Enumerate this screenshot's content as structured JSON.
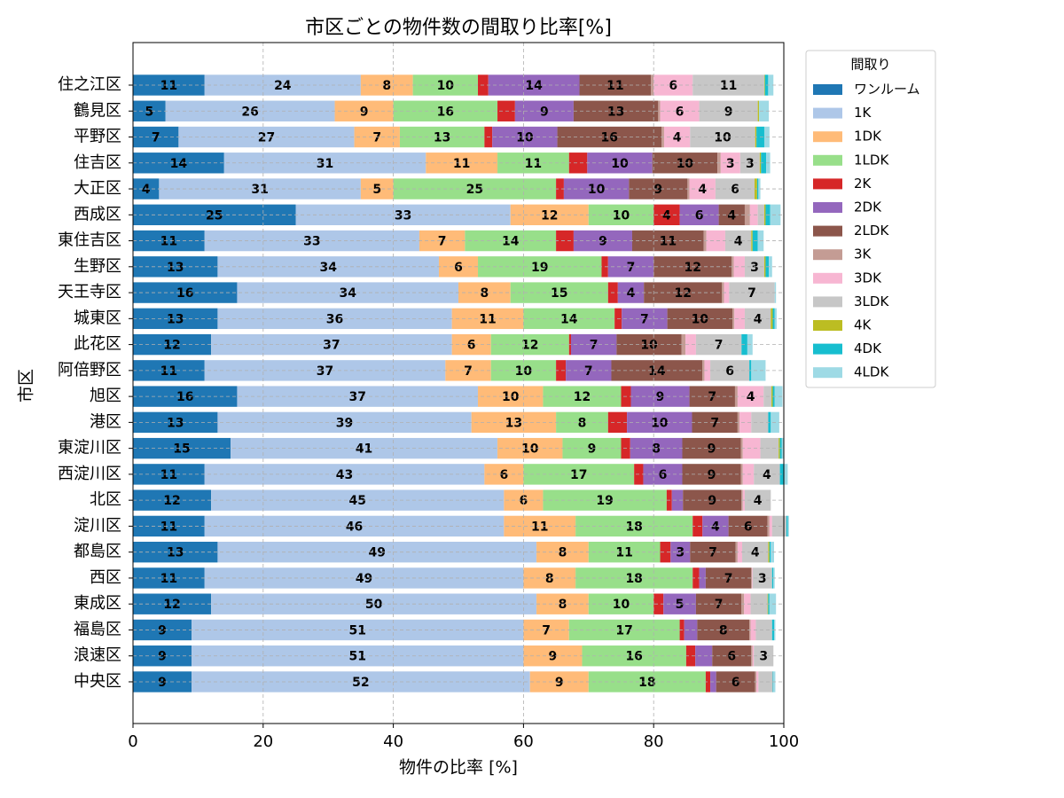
{
  "chart_data": {
    "type": "bar",
    "orientation": "horizontal",
    "stacked": true,
    "title": "市区ごとの物件数の間取り比率[%]",
    "xlabel": "物件の比率 [%]",
    "ylabel": "市区",
    "legend_title": "間取り",
    "legend": "outside-right",
    "grid": true,
    "xlim": [
      0,
      100
    ],
    "xticks": [
      0,
      20,
      40,
      60,
      80,
      100
    ],
    "categories": [
      "住之江区",
      "鶴見区",
      "平野区",
      "住吉区",
      "大正区",
      "西成区",
      "東住吉区",
      "生野区",
      "天王寺区",
      "城東区",
      "此花区",
      "阿倍野区",
      "旭区",
      "港区",
      "東淀川区",
      "西淀川区",
      "北区",
      "淀川区",
      "都島区",
      "西区",
      "東成区",
      "福島区",
      "浪速区",
      "中央区"
    ],
    "series": [
      {
        "name": "ワンルーム",
        "color": "#1f77b4",
        "values": [
          11,
          5,
          7,
          14,
          4,
          25,
          11,
          13,
          16,
          13,
          12,
          11,
          16,
          13,
          15,
          11,
          12,
          11,
          13,
          11,
          12,
          9,
          9,
          9
        ]
      },
      {
        "name": "1K",
        "color": "#aec7e8",
        "values": [
          24,
          26,
          27,
          31,
          31,
          33,
          33,
          34,
          34,
          36,
          37,
          37,
          37,
          39,
          41,
          43,
          45,
          46,
          49,
          49,
          50,
          51,
          51,
          52
        ]
      },
      {
        "name": "1DK",
        "color": "#ffbb78",
        "values": [
          8,
          9,
          7,
          11,
          5,
          12,
          7,
          6,
          8,
          11,
          6,
          7,
          10,
          13,
          10,
          6,
          6,
          11,
          8,
          8,
          8,
          7,
          9,
          9
        ]
      },
      {
        "name": "1LDK",
        "color": "#98df8a",
        "values": [
          10,
          16,
          13,
          11,
          25,
          10,
          14,
          19,
          15,
          14,
          12,
          10,
          12,
          8,
          9,
          17,
          19,
          18,
          11,
          18,
          10,
          17,
          16,
          18
        ]
      },
      {
        "name": "2K",
        "color": "#d62728",
        "values": [
          1.6,
          2.7,
          1.2,
          2.8,
          1.2,
          4,
          2.7,
          1.0,
          1.5,
          1.1,
          0.3,
          1.5,
          1.5,
          2.9,
          1.4,
          1.4,
          0.8,
          1.5,
          1.6,
          1,
          1.5,
          0.7,
          1.4,
          0.7
        ]
      },
      {
        "name": "2DK",
        "color": "#9467bd",
        "values": [
          14,
          9,
          10,
          10,
          10,
          6,
          9,
          7,
          4,
          7,
          7,
          7,
          9,
          10,
          8,
          6,
          1.7,
          4,
          3,
          1,
          5,
          2,
          2.6,
          0.9
        ]
      },
      {
        "name": "2LDK",
        "color": "#8c564b",
        "values": [
          11,
          13,
          16,
          10,
          9,
          4,
          11,
          12,
          12,
          10,
          10,
          14,
          7,
          7,
          9,
          9,
          9,
          6,
          7,
          7,
          7,
          8,
          6,
          6
        ]
      },
      {
        "name": "3K",
        "color": "#c49c94",
        "values": [
          0.4,
          0.3,
          0.4,
          0.5,
          0.3,
          0.8,
          0.4,
          0.3,
          0.3,
          0.3,
          0.6,
          0.3,
          0.4,
          0.3,
          0.3,
          0.3,
          0.2,
          0.3,
          0.3,
          0.1,
          0.4,
          0.2,
          0.2,
          0.2
        ]
      },
      {
        "name": "3DK",
        "color": "#f7b6d2",
        "values": [
          6,
          6,
          4,
          3,
          4,
          1.2,
          2.9,
          1.7,
          0.8,
          1.6,
          1.6,
          0.9,
          4,
          1.8,
          2.7,
          1.7,
          0.3,
          0.4,
          0.7,
          0.1,
          1,
          0.8,
          0.2,
          0.3
        ]
      },
      {
        "name": "3LDK",
        "color": "#c7c7c7",
        "values": [
          11,
          9,
          10,
          3,
          6,
          1,
          4,
          3,
          7,
          4,
          7,
          6,
          1.2,
          2.6,
          2.8,
          4,
          4,
          2.2,
          4,
          3,
          2.6,
          2.5,
          3,
          2.2
        ]
      },
      {
        "name": "4K",
        "color": "#bcbd22",
        "values": [
          0.1,
          0.2,
          0.2,
          0.2,
          0.4,
          0.2,
          0.2,
          0.2,
          0,
          0.3,
          0,
          0,
          0.2,
          0,
          0.2,
          0,
          0,
          0,
          0.2,
          0,
          0.1,
          0,
          0,
          0
        ]
      },
      {
        "name": "4DK",
        "color": "#17becf",
        "values": [
          0.5,
          0,
          1.2,
          0.8,
          0.2,
          0.7,
          0.8,
          0.5,
          0,
          0.3,
          0.9,
          0.3,
          0.3,
          0.4,
          0.3,
          0.6,
          0,
          0.2,
          0.2,
          0.2,
          0.2,
          0.3,
          0,
          0.1
        ]
      },
      {
        "name": "4LDK",
        "color": "#9edae5",
        "values": [
          0.8,
          1.5,
          0.8,
          0.6,
          0.3,
          1.6,
          0.9,
          0.5,
          0.2,
          0.3,
          0.8,
          2.2,
          1.2,
          1.3,
          0.3,
          0.6,
          0,
          0.2,
          0.5,
          0.2,
          1,
          0.2,
          0,
          0.3
        ]
      }
    ]
  }
}
